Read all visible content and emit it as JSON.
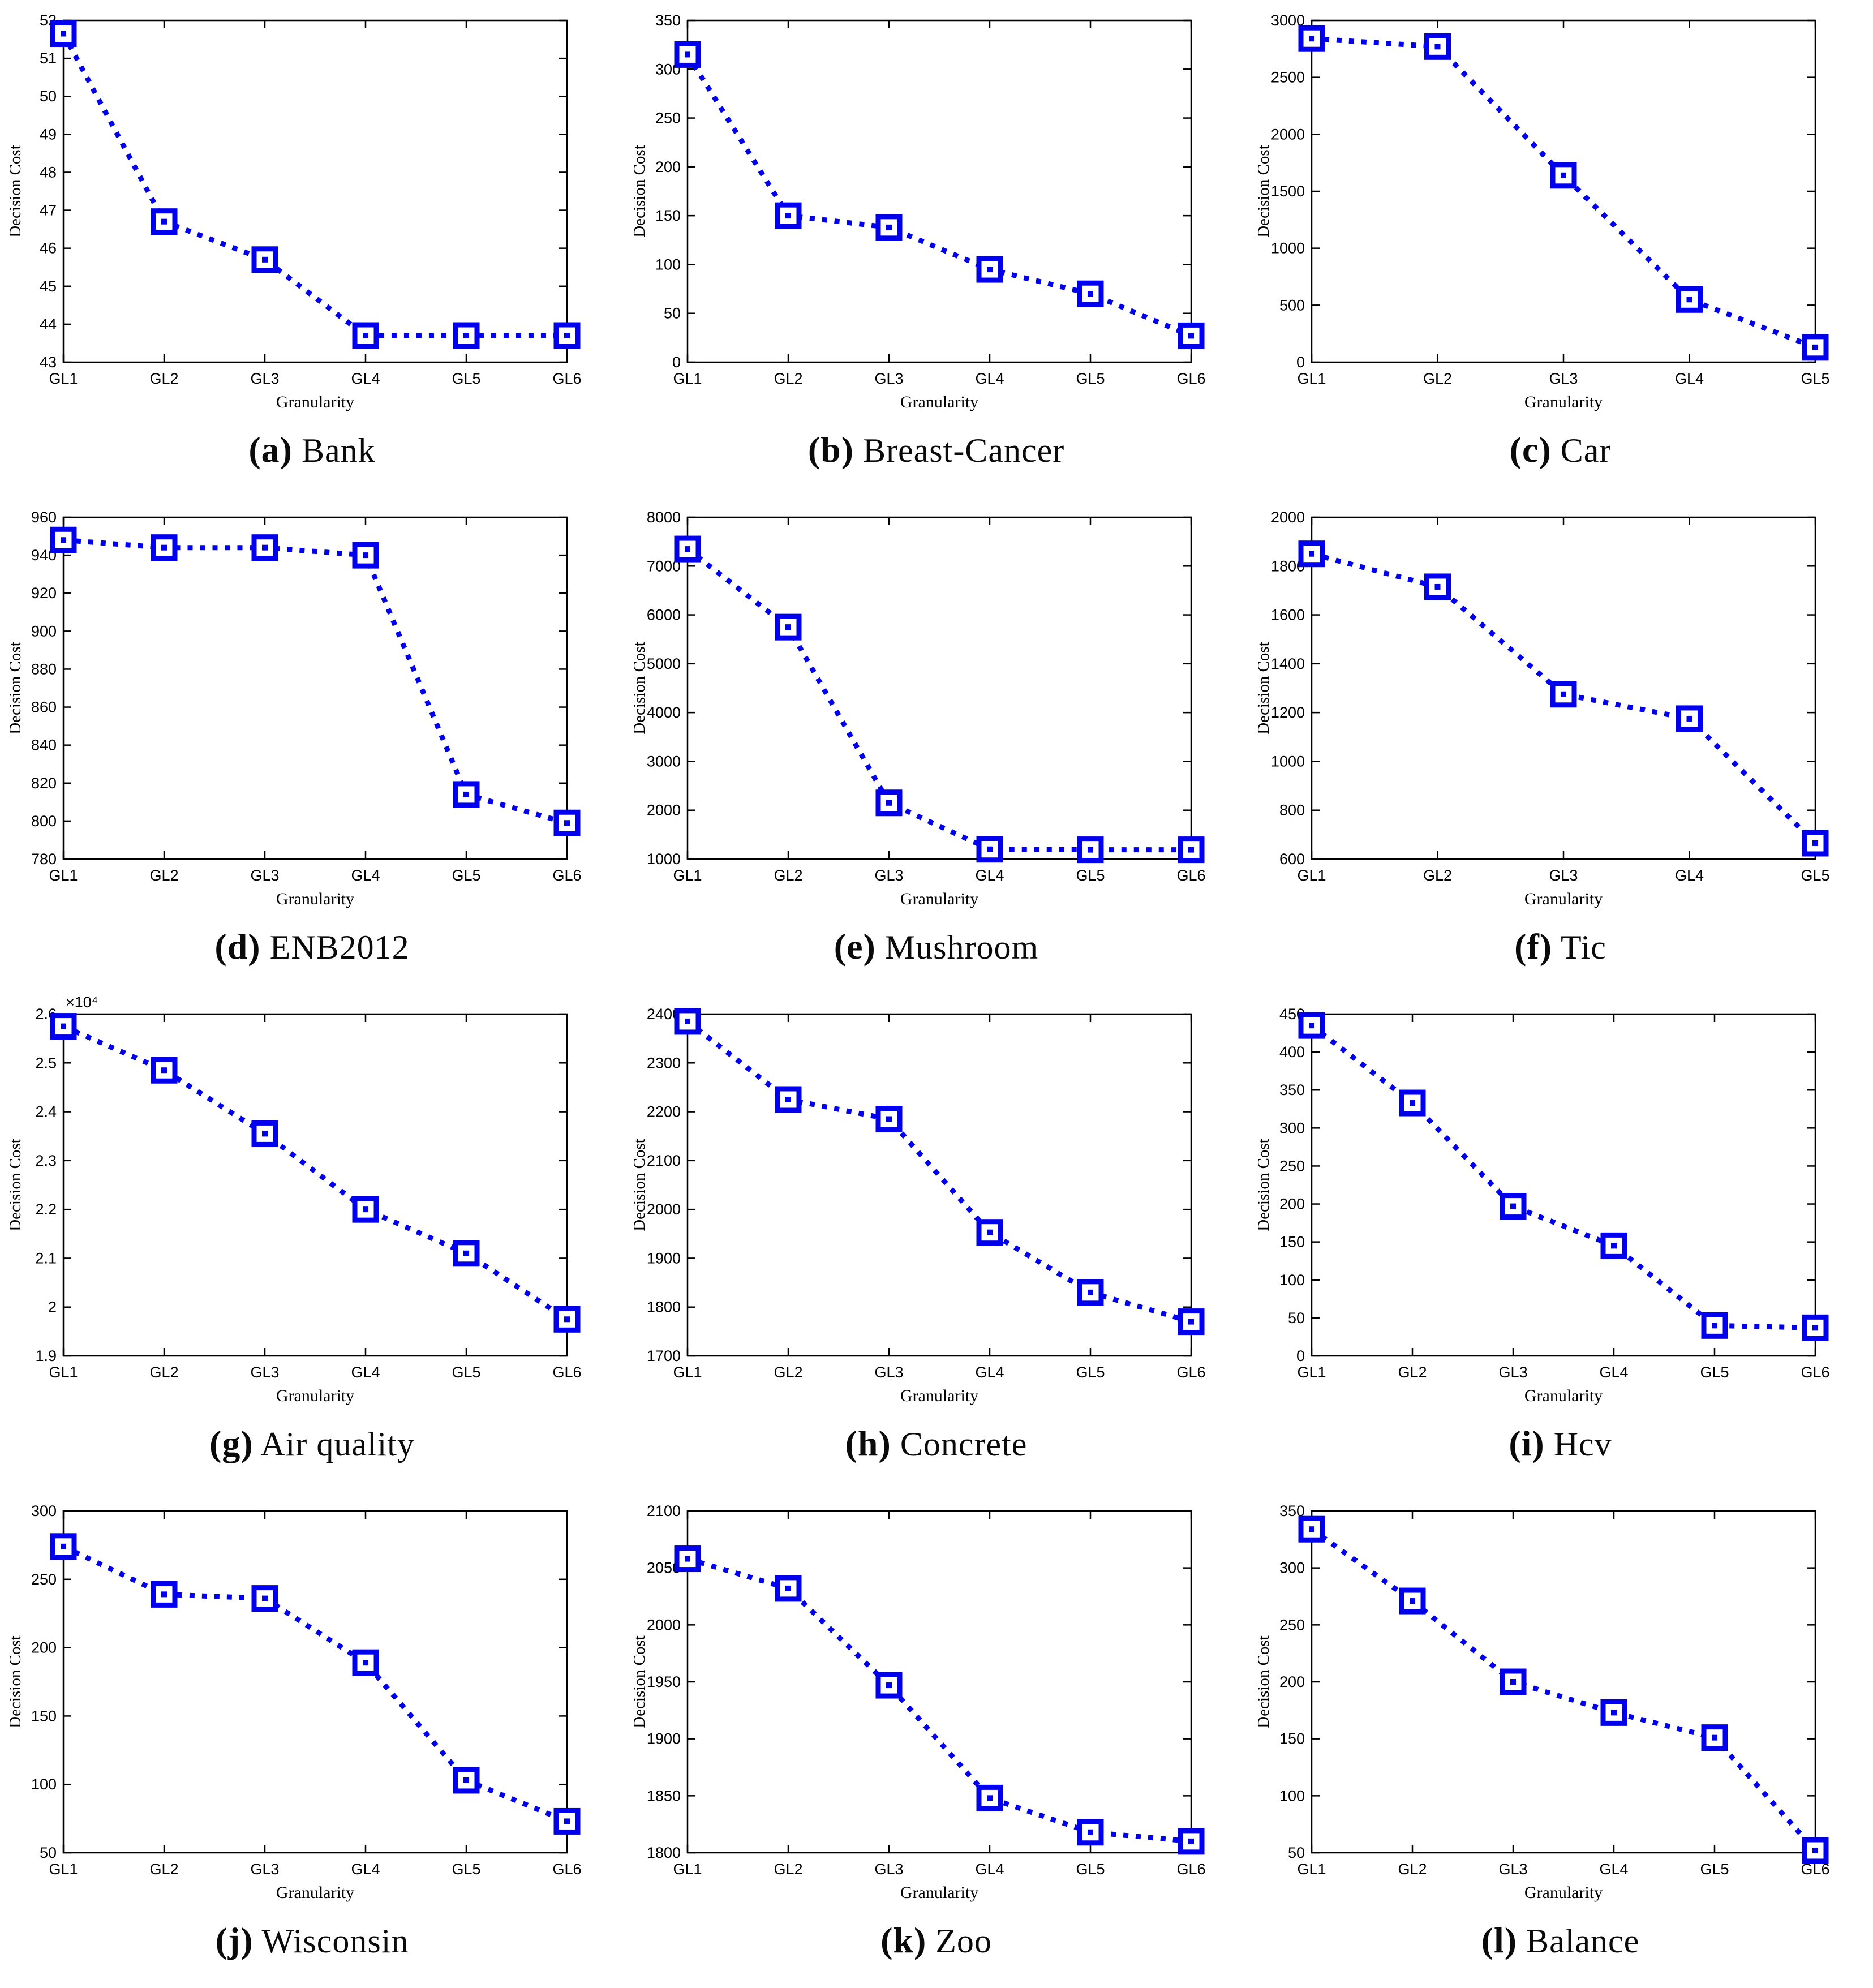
{
  "figure": {
    "xlabel": "Granularity",
    "ylabel": "Decision Cost",
    "line_color": "#0000EE",
    "axis_color": "#000000",
    "background": "#ffffff"
  },
  "chart_data": [
    {
      "type": "line",
      "id": "a",
      "caption_letter": "(a)",
      "caption_label": "Bank",
      "xlabel": "Granularity",
      "ylabel": "Decision Cost",
      "categories": [
        "GL1",
        "GL2",
        "GL3",
        "GL4",
        "GL5",
        "GL6"
      ],
      "values": [
        51.65,
        46.7,
        45.7,
        43.7,
        43.7,
        43.7
      ],
      "ylim": [
        43,
        52
      ],
      "ytick_step": 1,
      "legend": "none",
      "grid": "off",
      "marker": "square",
      "line_style": "dotted"
    },
    {
      "type": "line",
      "id": "b",
      "caption_letter": "(b)",
      "caption_label": "Breast-Cancer",
      "xlabel": "Granularity",
      "ylabel": "Decision Cost",
      "categories": [
        "GL1",
        "GL2",
        "GL3",
        "GL4",
        "GL5",
        "GL6"
      ],
      "values": [
        315,
        150,
        138,
        95,
        70,
        27
      ],
      "ylim": [
        0,
        350
      ],
      "ytick_step": 50,
      "legend": "none",
      "grid": "off",
      "marker": "square",
      "line_style": "dotted"
    },
    {
      "type": "line",
      "id": "c",
      "caption_letter": "(c)",
      "caption_label": "Car",
      "xlabel": "Granularity",
      "ylabel": "Decision Cost",
      "categories": [
        "GL1",
        "GL2",
        "GL3",
        "GL4",
        "GL5"
      ],
      "values": [
        2840,
        2770,
        1640,
        550,
        130
      ],
      "ylim": [
        0,
        3000
      ],
      "ytick_step": 500,
      "legend": "none",
      "grid": "off",
      "marker": "square",
      "line_style": "dotted"
    },
    {
      "type": "line",
      "id": "d",
      "caption_letter": "(d)",
      "caption_label": "ENB2012",
      "xlabel": "Granularity",
      "ylabel": "Decision Cost",
      "categories": [
        "GL1",
        "GL2",
        "GL3",
        "GL4",
        "GL5",
        "GL6"
      ],
      "values": [
        948,
        944,
        944,
        940,
        814,
        799
      ],
      "ylim": [
        780,
        960
      ],
      "ytick_step": 20,
      "legend": "none",
      "grid": "off",
      "marker": "square",
      "line_style": "dotted"
    },
    {
      "type": "line",
      "id": "e",
      "caption_letter": "(e)",
      "caption_label": "Mushroom",
      "xlabel": "Granularity",
      "ylabel": "Decision Cost",
      "categories": [
        "GL1",
        "GL2",
        "GL3",
        "GL4",
        "GL5",
        "GL6"
      ],
      "values": [
        7350,
        5750,
        2150,
        1200,
        1190,
        1190
      ],
      "ylim": [
        1000,
        8000
      ],
      "ytick_step": 1000,
      "legend": "none",
      "grid": "off",
      "marker": "square",
      "line_style": "dotted"
    },
    {
      "type": "line",
      "id": "f",
      "caption_letter": "(f)",
      "caption_label": "Tic",
      "xlabel": "Granularity",
      "ylabel": "Decision Cost",
      "categories": [
        "GL1",
        "GL2",
        "GL3",
        "GL4",
        "GL5"
      ],
      "values": [
        1850,
        1715,
        1275,
        1175,
        665
      ],
      "ylim": [
        600,
        2000
      ],
      "ytick_step": 200,
      "legend": "none",
      "grid": "off",
      "marker": "square",
      "line_style": "dotted"
    },
    {
      "type": "line",
      "id": "g",
      "caption_letter": "(g)",
      "caption_label": "Air quality",
      "xlabel": "Granularity",
      "ylabel": "Decision Cost",
      "y_scale_label": "×10⁴",
      "categories": [
        "GL1",
        "GL2",
        "GL3",
        "GL4",
        "GL5",
        "GL6"
      ],
      "values": [
        2.575,
        2.485,
        2.355,
        2.2,
        2.11,
        1.975
      ],
      "ylim": [
        1.9,
        2.6
      ],
      "ytick_step": 0.1,
      "legend": "none",
      "grid": "off",
      "marker": "square",
      "line_style": "dotted"
    },
    {
      "type": "line",
      "id": "h",
      "caption_letter": "(h)",
      "caption_label": "Concrete",
      "xlabel": "Granularity",
      "ylabel": "Decision Cost",
      "categories": [
        "GL1",
        "GL2",
        "GL3",
        "GL4",
        "GL5",
        "GL6"
      ],
      "values": [
        2385,
        2225,
        2185,
        1953,
        1830,
        1770
      ],
      "ylim": [
        1700,
        2400
      ],
      "ytick_step": 100,
      "legend": "none",
      "grid": "off",
      "marker": "square",
      "line_style": "dotted"
    },
    {
      "type": "line",
      "id": "i",
      "caption_letter": "(i)",
      "caption_label": "Hcv",
      "xlabel": "Granularity",
      "ylabel": "Decision Cost",
      "categories": [
        "GL1",
        "GL2",
        "GL3",
        "GL4",
        "GL5",
        "GL6"
      ],
      "values": [
        435,
        333,
        197,
        145,
        40,
        37
      ],
      "ylim": [
        0,
        450
      ],
      "ytick_step": 50,
      "legend": "none",
      "grid": "off",
      "marker": "square",
      "line_style": "dotted"
    },
    {
      "type": "line",
      "id": "j",
      "caption_letter": "(j)",
      "caption_label": "Wisconsin",
      "xlabel": "Granularity",
      "ylabel": "Decision Cost",
      "categories": [
        "GL1",
        "GL2",
        "GL3",
        "GL4",
        "GL5",
        "GL6"
      ],
      "values": [
        274,
        239,
        236,
        189,
        103,
        73
      ],
      "ylim": [
        50,
        300
      ],
      "ytick_step": 50,
      "legend": "none",
      "grid": "off",
      "marker": "square",
      "line_style": "dotted"
    },
    {
      "type": "line",
      "id": "k",
      "caption_letter": "(k)",
      "caption_label": "Zoo",
      "xlabel": "Granularity",
      "ylabel": "Decision Cost",
      "categories": [
        "GL1",
        "GL2",
        "GL3",
        "GL4",
        "GL5",
        "GL6"
      ],
      "values": [
        2058,
        2032,
        1947,
        1848,
        1818,
        1810
      ],
      "ylim": [
        1800,
        2100
      ],
      "ytick_step": 50,
      "legend": "none",
      "grid": "off",
      "marker": "square",
      "line_style": "dotted"
    },
    {
      "type": "line",
      "id": "l",
      "caption_letter": "(l)",
      "caption_label": "Balance",
      "xlabel": "Granularity",
      "ylabel": "Decision Cost",
      "categories": [
        "GL1",
        "GL2",
        "GL3",
        "GL4",
        "GL5",
        "GL6"
      ],
      "values": [
        334,
        271,
        200,
        173,
        151,
        52
      ],
      "ylim": [
        50,
        350
      ],
      "ytick_step": 50,
      "legend": "none",
      "grid": "off",
      "marker": "square",
      "line_style": "dotted"
    }
  ]
}
